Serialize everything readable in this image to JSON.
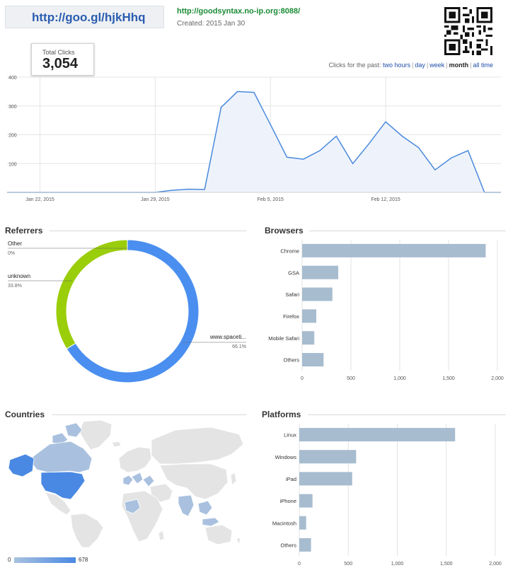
{
  "header": {
    "short_url": "http://goo.gl/hjkHhq",
    "long_url": "http://goodsyntax.no-ip.org:8088/",
    "created": "Created: 2015 Jan 30"
  },
  "total": {
    "label": "Total Clicks",
    "value": "3,054"
  },
  "period": {
    "prefix": "Clicks for the past:",
    "options": [
      "two hours",
      "day",
      "week",
      "month",
      "all time"
    ],
    "active": "month"
  },
  "clicks_chart": {
    "type": "area",
    "y_ticks": [
      "400",
      "300",
      "200",
      "100"
    ],
    "ylim": [
      0,
      400
    ],
    "x_tick_labels": [
      "Jan 22, 2015",
      "Jan 29, 2015",
      "Feb 5, 2015",
      "Feb 12, 2015"
    ],
    "x_tick_days": [
      1,
      8,
      15,
      22
    ],
    "days": [
      -1,
      0,
      1,
      2,
      3,
      4,
      5,
      6,
      7,
      8,
      9,
      10,
      11,
      12,
      13,
      14,
      15,
      16,
      17,
      18,
      19,
      20,
      21,
      22,
      23,
      24,
      25,
      26,
      27,
      28,
      29
    ],
    "values": [
      0,
      0,
      0,
      0,
      0,
      0,
      0,
      0,
      0,
      0,
      7,
      11,
      10,
      295,
      350,
      347,
      235,
      122,
      115,
      145,
      195,
      100,
      170,
      245,
      195,
      155,
      78,
      120,
      145,
      0,
      0
    ],
    "color": "#4a89dc",
    "fill": "#eef3fb"
  },
  "referrers": {
    "title": "Referrers",
    "chart_data": {
      "type": "pie",
      "slices": [
        {
          "name": "www.spaceti...",
          "value": 66.1,
          "label": "66.1%",
          "color": "#4a8ff0"
        },
        {
          "name": "unknown",
          "value": 33.8,
          "label": "33.8%",
          "color": "#9acd0a"
        },
        {
          "name": "Other",
          "value": 0,
          "label": "0%",
          "color": "#bdbdbd"
        }
      ]
    }
  },
  "browsers": {
    "title": "Browsers",
    "chart_data": {
      "type": "bar",
      "categories": [
        "Chrome",
        "GSA",
        "Safari",
        "Firefox",
        "Mobile Safari",
        "Others"
      ],
      "values": [
        1880,
        370,
        310,
        145,
        125,
        220
      ],
      "xlim": [
        0,
        2000
      ],
      "x_ticks": [
        "0",
        "500",
        "1,000",
        "1,500",
        "2,000"
      ],
      "color": "#a7bccf"
    }
  },
  "countries": {
    "title": "Countries",
    "legend_min": "0",
    "legend_max": "678"
  },
  "platforms": {
    "title": "Platforms",
    "chart_data": {
      "type": "bar",
      "categories": [
        "Linux",
        "Windows",
        "iPad",
        "iPhone",
        "Macintosh",
        "Others"
      ],
      "values": [
        1590,
        580,
        540,
        135,
        70,
        120
      ],
      "xlim": [
        0,
        2000
      ],
      "x_ticks": [
        "0",
        "500",
        "1,000",
        "1,500",
        "2,000"
      ],
      "color": "#a7bccf"
    }
  }
}
